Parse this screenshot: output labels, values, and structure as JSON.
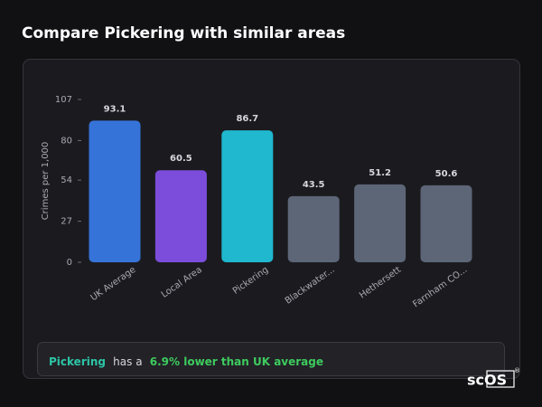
{
  "chart_data": {
    "type": "bar",
    "title": "Compare Pickering with similar areas",
    "y_label": "Crimes per 1,000",
    "categories": [
      "UK Average",
      "Local Area",
      "Pickering",
      "Blackwater...",
      "Hethersett",
      "Farnham CO..."
    ],
    "values": [
      93.1,
      60.5,
      86.7,
      43.5,
      51.2,
      50.6
    ],
    "colors": [
      "#3673d9",
      "#7c4ddb",
      "#1fb8cf",
      "#5c6677",
      "#5c6677",
      "#5c6677"
    ],
    "ylim": [
      0,
      107
    ],
    "yticks": [
      0,
      27,
      54,
      80,
      107
    ],
    "grid": false
  },
  "summary": {
    "area": "Pickering",
    "text": "has a",
    "highlight": "6.9% lower than UK average"
  },
  "logo": {
    "name": "scOS",
    "mark": "®"
  }
}
